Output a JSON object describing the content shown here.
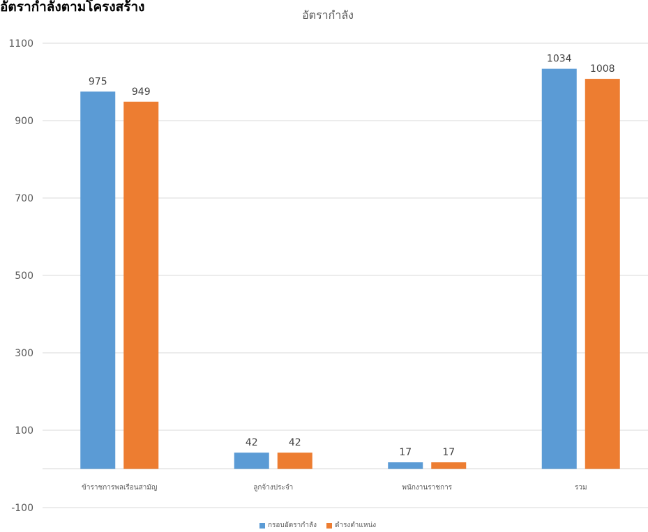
{
  "page": {
    "heading": "อัตรากำลังตามโครงสร้าง"
  },
  "chart_data": {
    "type": "bar",
    "title": "อัตรากำลัง",
    "categories": [
      "ข้าราชการพลเรือนสามัญ",
      "ลูกจ้างประจำ",
      "พนักงานราชการ",
      "รวม"
    ],
    "series": [
      {
        "name": "กรอบอัตรากำลัง",
        "values": [
          975,
          42,
          17,
          1034
        ],
        "color": "#5B9BD5"
      },
      {
        "name": "ดำรงตำแหน่ง",
        "values": [
          949,
          42,
          17,
          1008
        ],
        "color": "#ED7D31"
      }
    ],
    "ylim": [
      -100,
      1100
    ],
    "yticks": [
      -100,
      100,
      300,
      500,
      700,
      900,
      1100
    ],
    "grid": true,
    "data_labels": true,
    "legend": "bottom"
  }
}
